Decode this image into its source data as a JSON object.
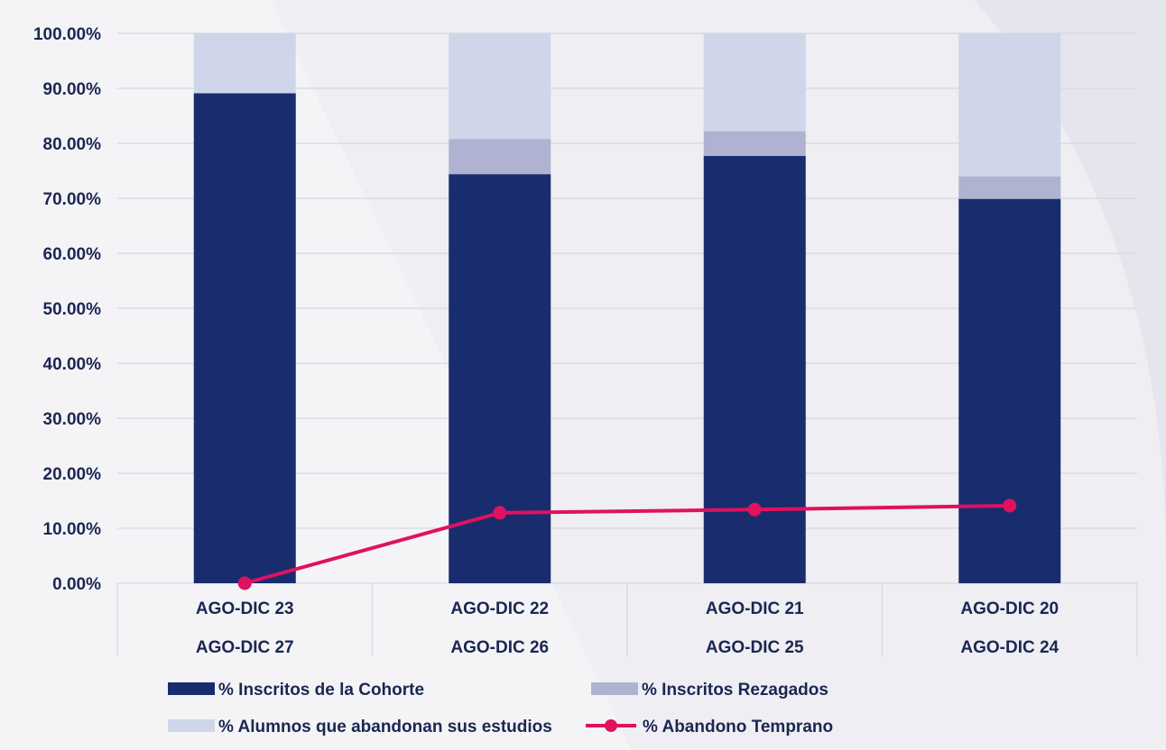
{
  "chart_data": {
    "type": "bar",
    "stacked": true,
    "categories": [
      [
        "AGO-DIC 23",
        "AGO-DIC 27"
      ],
      [
        "AGO-DIC 22",
        "AGO-DIC 26"
      ],
      [
        "AGO-DIC 21",
        "AGO-DIC 25"
      ],
      [
        "AGO-DIC 20",
        "AGO-DIC 24"
      ]
    ],
    "series": [
      {
        "name": "% Inscritos de la Cohorte",
        "type": "bar",
        "color": "#192d6e",
        "values": [
          89.1,
          74.4,
          77.7,
          69.9
        ]
      },
      {
        "name": "% Inscritos Rezagados",
        "type": "bar",
        "color": "#afb3d1",
        "values": [
          0,
          6.4,
          4.5,
          4.1
        ]
      },
      {
        "name": "% Alumnos que abandonan sus estudios",
        "type": "bar",
        "color": "#cfd6e9",
        "values": [
          10.9,
          19.2,
          17.8,
          26.0
        ]
      },
      {
        "name": "% Abandono Temprano",
        "type": "line",
        "color": "#e0115f",
        "values": [
          0.0,
          12.8,
          13.4,
          14.1
        ]
      }
    ],
    "ylim": [
      0,
      100
    ],
    "yticks": [
      "0.00%",
      "10.00%",
      "20.00%",
      "30.00%",
      "40.00%",
      "50.00%",
      "60.00%",
      "70.00%",
      "80.00%",
      "90.00%",
      "100.00%"
    ],
    "grid": true,
    "legend_position": "bottom",
    "title": "",
    "xlabel": "",
    "ylabel": ""
  }
}
